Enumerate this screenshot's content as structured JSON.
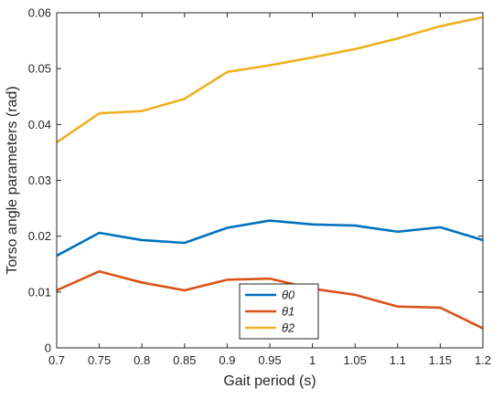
{
  "chart_data": {
    "type": "line",
    "title": "",
    "xlabel": "Gait period (s)",
    "ylabel": "Torso angle parameters (rad)",
    "x": [
      0.7,
      0.75,
      0.8,
      0.85,
      0.9,
      0.95,
      1,
      1.05,
      1.1,
      1.15,
      1.2
    ],
    "xlim": [
      0.7,
      1.2
    ],
    "ylim": [
      0,
      0.06
    ],
    "xticks": [
      "0.7",
      "0.75",
      "0.8",
      "0.85",
      "0.9",
      "0.95",
      "1",
      "1.05",
      "1.1",
      "1.15",
      "1.2"
    ],
    "yticks": [
      "0",
      "0.01",
      "0.02",
      "0.03",
      "0.04",
      "0.05",
      "0.06"
    ],
    "grid": false,
    "legend_position": "bottom-center",
    "series": [
      {
        "name": "θ0",
        "color": "#0072BD",
        "values": [
          0.0165,
          0.0206,
          0.0193,
          0.0188,
          0.0215,
          0.0228,
          0.0221,
          0.0219,
          0.0208,
          0.0216,
          0.0193
        ]
      },
      {
        "name": "θ1",
        "color": "#D95319",
        "values": [
          0.0103,
          0.0137,
          0.0117,
          0.0103,
          0.0122,
          0.0124,
          0.0106,
          0.0095,
          0.0074,
          0.0072,
          0.0035
        ]
      },
      {
        "name": "θ2",
        "color": "#EDB120",
        "values": [
          0.0368,
          0.042,
          0.0424,
          0.0446,
          0.0494,
          0.0506,
          0.052,
          0.0535,
          0.0554,
          0.0576,
          0.0592
        ]
      }
    ]
  }
}
